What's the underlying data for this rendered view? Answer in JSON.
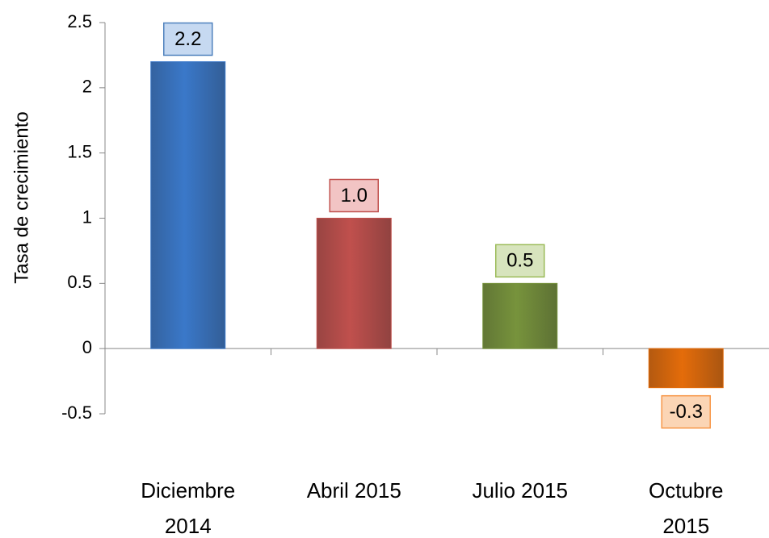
{
  "chart_data": {
    "type": "bar",
    "y_label": "Tasa de crecimiento",
    "categories": [
      "Diciembre 2014",
      "Abril 2015",
      "Julio 2015",
      "Octubre 2015"
    ],
    "values": [
      2.2,
      1.0,
      0.5,
      -0.3
    ],
    "value_labels": [
      "2.2",
      "1.0",
      "0.5",
      "-0.3"
    ],
    "colors": [
      "#3a78c9",
      "#c0504d",
      "#77933c",
      "#e46c0a"
    ],
    "label_colors": [
      "#c6d9f1",
      "#f2c4c4",
      "#d7e4bd",
      "#fbd5b5"
    ],
    "label_borders": [
      "#4f81bd",
      "#c0504d",
      "#9bbb59",
      "#f79646"
    ],
    "ylim": [
      -0.5,
      2.5
    ],
    "yticks": [
      -0.5,
      0,
      0.5,
      1,
      1.5,
      2,
      2.5
    ]
  }
}
